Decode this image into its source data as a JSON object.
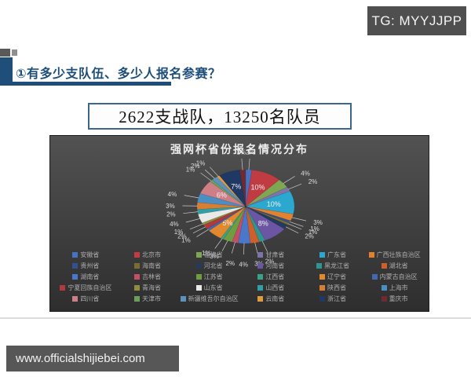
{
  "badges": {
    "tg": "TG: MYYJJPP",
    "footer": "www.officialshijiebei.com"
  },
  "header": {
    "title": "①有多少支队伍、多少人报名参赛？"
  },
  "headline": {
    "text": "2622支战队，13250名队员"
  },
  "chart_data": {
    "type": "pie",
    "title": "强网杯省份报名情况分布",
    "unit": "%",
    "legend_position": "bottom",
    "panel_background": "#3a3a3a",
    "slices": [
      {
        "label": "安徽省",
        "value": 2,
        "color": "#4472C4"
      },
      {
        "label": "北京市",
        "value": 10,
        "color": "#C13B43"
      },
      {
        "label": "福建省",
        "value": 4,
        "color": "#7FA650"
      },
      {
        "label": "甘肃省",
        "value": 2,
        "color": "#7D74A8"
      },
      {
        "label": "广东省",
        "value": 10,
        "color": "#2BA8D0"
      },
      {
        "label": "广西壮族自治区",
        "value": 3,
        "color": "#E2822F"
      },
      {
        "label": "贵州省",
        "value": 1,
        "color": "#33508F"
      },
      {
        "label": "海南省",
        "value": 1,
        "color": "#7A6E2F"
      },
      {
        "label": "河北省",
        "value": 2,
        "color": "#243B5E"
      },
      {
        "label": "河南省",
        "value": 8,
        "color": "#6C55A3"
      },
      {
        "label": "黑龙江省",
        "value": 2,
        "color": "#2E968E"
      },
      {
        "label": "湖北省",
        "value": 3,
        "color": "#CE5F2A"
      },
      {
        "label": "湖南省",
        "value": 4,
        "color": "#4A77C9"
      },
      {
        "label": "吉林省",
        "value": 2,
        "color": "#C14F66"
      },
      {
        "label": "江苏省",
        "value": 3,
        "color": "#6F9E42"
      },
      {
        "label": "江西省",
        "value": 1,
        "color": "#3BA183"
      },
      {
        "label": "辽宁省",
        "value": 5,
        "color": "#E2882F"
      },
      {
        "label": "内蒙古自治区",
        "value": 1,
        "color": "#4467AE"
      },
      {
        "label": "宁夏回族自治区",
        "value": 2,
        "color": "#AE3A3E"
      },
      {
        "label": "青海省",
        "value": 1,
        "color": "#8E8F3D"
      },
      {
        "label": "山东省",
        "value": 4,
        "color": "#E9E9E9"
      },
      {
        "label": "山西省",
        "value": 2,
        "color": "#2FA0A6"
      },
      {
        "label": "陕西省",
        "value": 3,
        "color": "#D87E32"
      },
      {
        "label": "上海市",
        "value": 4,
        "color": "#4B8EC2"
      },
      {
        "label": "四川省",
        "value": 6,
        "color": "#CE7E85"
      },
      {
        "label": "天津市",
        "value": 1,
        "color": "#6BA05C"
      },
      {
        "label": "新疆维吾尔自治区",
        "value": 2,
        "color": "#5C90BD"
      },
      {
        "label": "云南省",
        "value": 1,
        "color": "#DE9B40"
      },
      {
        "label": "浙江省",
        "value": 7,
        "color": "#1F3864"
      },
      {
        "label": "重庆市",
        "value": 2,
        "color": "#6E2B33"
      }
    ]
  }
}
